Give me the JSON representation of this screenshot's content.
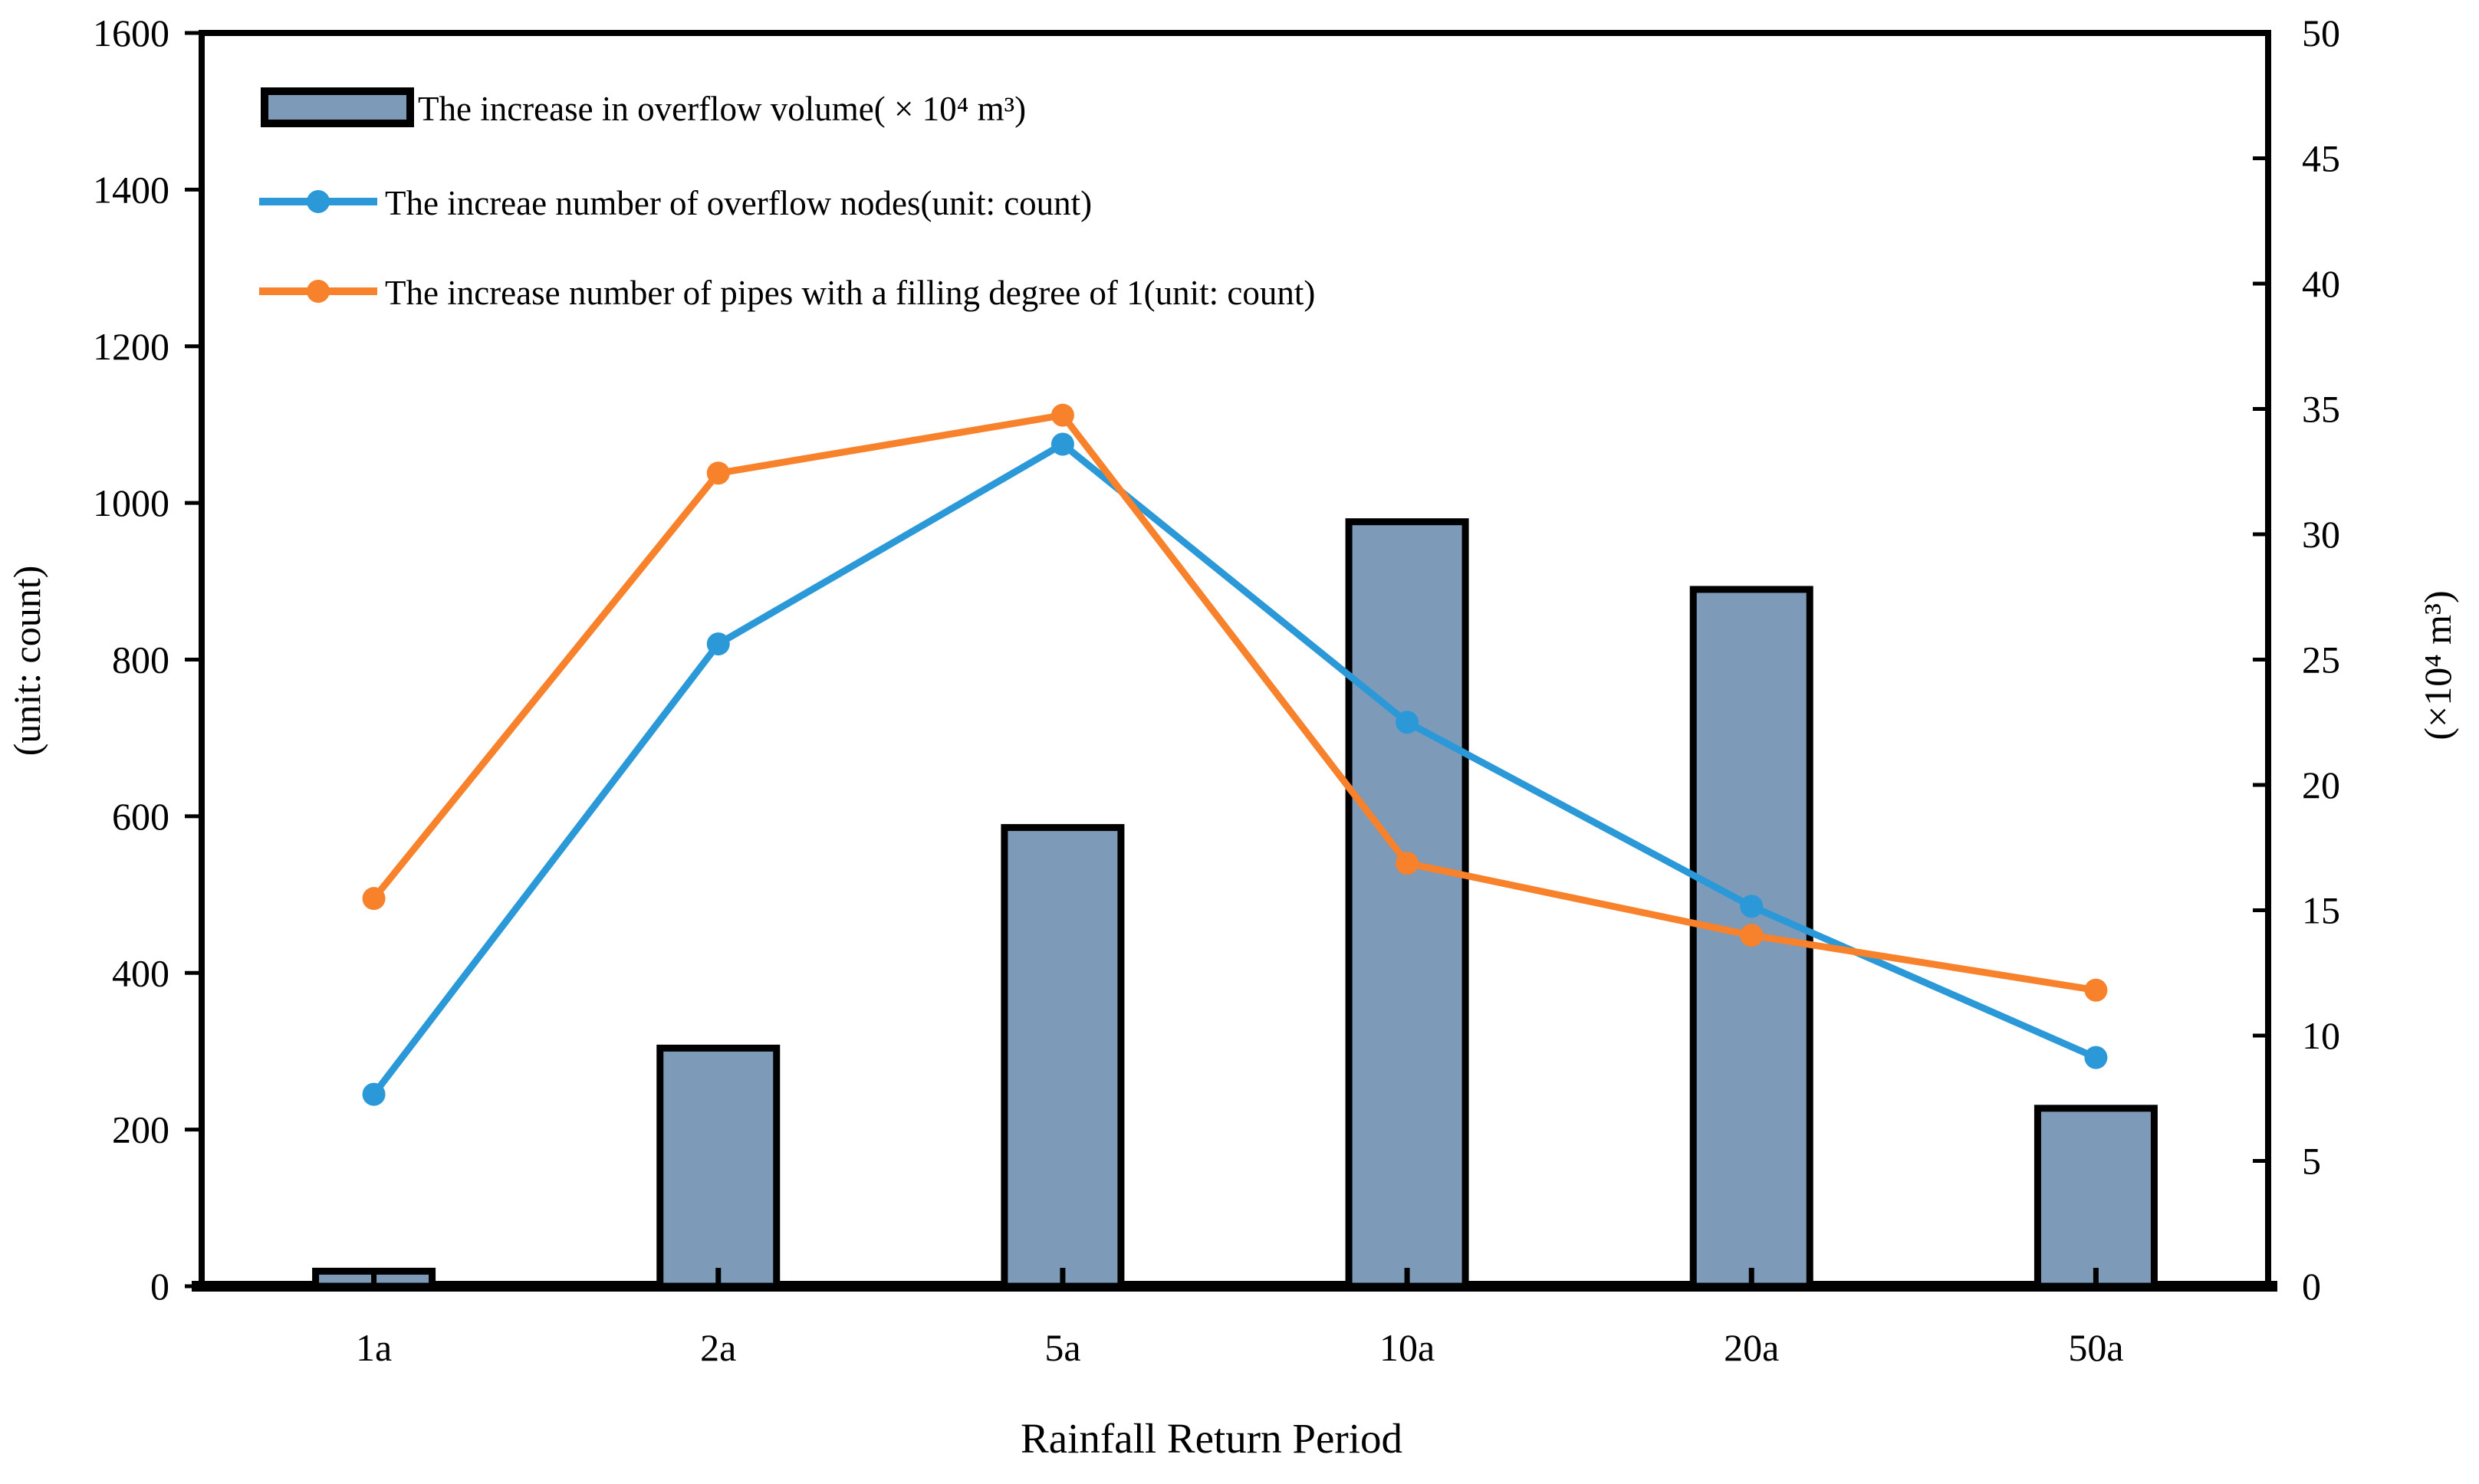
{
  "chart_data": {
    "type": "bar",
    "subtype": "combo-bar-line-dual-axis",
    "title": "",
    "categories": [
      "1a",
      "2a",
      "5a",
      "10a",
      "20a",
      "50a"
    ],
    "series": [
      {
        "name": "The increase in overflow volume( × 10⁴ m³)",
        "type": "bar",
        "axis": "right",
        "color": "#7d9ab8",
        "border_color": "#000000",
        "values": [
          0.6,
          9.5,
          18.3,
          30.5,
          27.8,
          7.1
        ]
      },
      {
        "name": "The increae number of overflow nodes(unit: count)",
        "type": "line",
        "axis": "left",
        "color": "#2b99d8",
        "values": [
          245,
          820,
          1075,
          720,
          485,
          292
        ]
      },
      {
        "name": "The increase  number of pipes with a filling degree of 1(unit: count)",
        "type": "line",
        "axis": "left",
        "color": "#f8812b",
        "values": [
          495,
          1038,
          1112,
          540,
          448,
          378
        ]
      }
    ],
    "xlabel": "Rainfall Return Period",
    "left_axis": {
      "label": "(unit: count)",
      "min": 0,
      "max": 1600,
      "step": 200,
      "ticks": [
        0,
        200,
        400,
        600,
        800,
        1000,
        1200,
        1400,
        1600
      ]
    },
    "right_axis": {
      "label": "(×10⁴ m³)",
      "min": 0,
      "max": 50,
      "step": 5,
      "ticks": [
        0,
        5,
        10,
        15,
        20,
        25,
        30,
        35,
        40,
        45,
        50
      ]
    },
    "legend_position": "top-left-inside",
    "grid": false,
    "background": "#ffffff",
    "frame_color": "#000000"
  }
}
